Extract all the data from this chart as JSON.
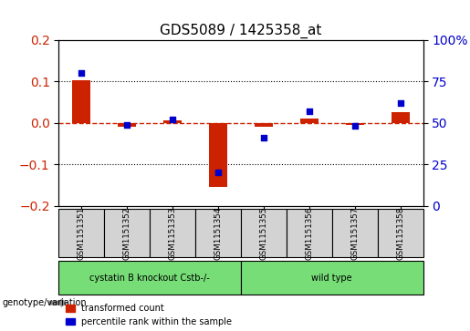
{
  "title": "GDS5089 / 1425358_at",
  "samples": [
    "GSM1151351",
    "GSM1151352",
    "GSM1151353",
    "GSM1151354",
    "GSM1151355",
    "GSM1151356",
    "GSM1151357",
    "GSM1151358"
  ],
  "transformed_count": [
    0.102,
    -0.01,
    0.005,
    -0.155,
    -0.01,
    0.01,
    -0.005,
    0.025
  ],
  "percentile_rank": [
    80,
    49,
    52,
    20,
    41,
    57,
    48,
    62
  ],
  "groups": {
    "cystatin B knockout Cstb-/-": [
      0,
      1,
      2,
      3
    ],
    "wild type": [
      4,
      5,
      6,
      7
    ]
  },
  "group_colors": {
    "cystatin B knockout Cstb-/-": "#77dd77",
    "wild type": "#77dd77"
  },
  "bar_color": "#cc2200",
  "scatter_color": "#0000cc",
  "ylim_left": [
    -0.2,
    0.2
  ],
  "ylim_right": [
    0,
    100
  ],
  "yticks_left": [
    -0.2,
    -0.1,
    0.0,
    0.1,
    0.2
  ],
  "yticks_right": [
    0,
    25,
    50,
    75,
    100
  ],
  "ytick_labels_right": [
    "0",
    "25",
    "50",
    "75",
    "100%"
  ],
  "dashed_line_y": 0.0,
  "hline_color": "#cc2200",
  "dotted_lines": [
    -0.1,
    0.1
  ],
  "bg_color": "#ffffff",
  "plot_area_bg": "#ffffff",
  "xlabel_fontsize": 7,
  "ylabel_left_color": "#cc2200",
  "ylabel_right_color": "#0000cc",
  "title_fontsize": 11,
  "legend_labels": [
    "transformed count",
    "percentile rank within the sample"
  ],
  "genotype_label": "genotype/variation",
  "bar_width": 0.4
}
